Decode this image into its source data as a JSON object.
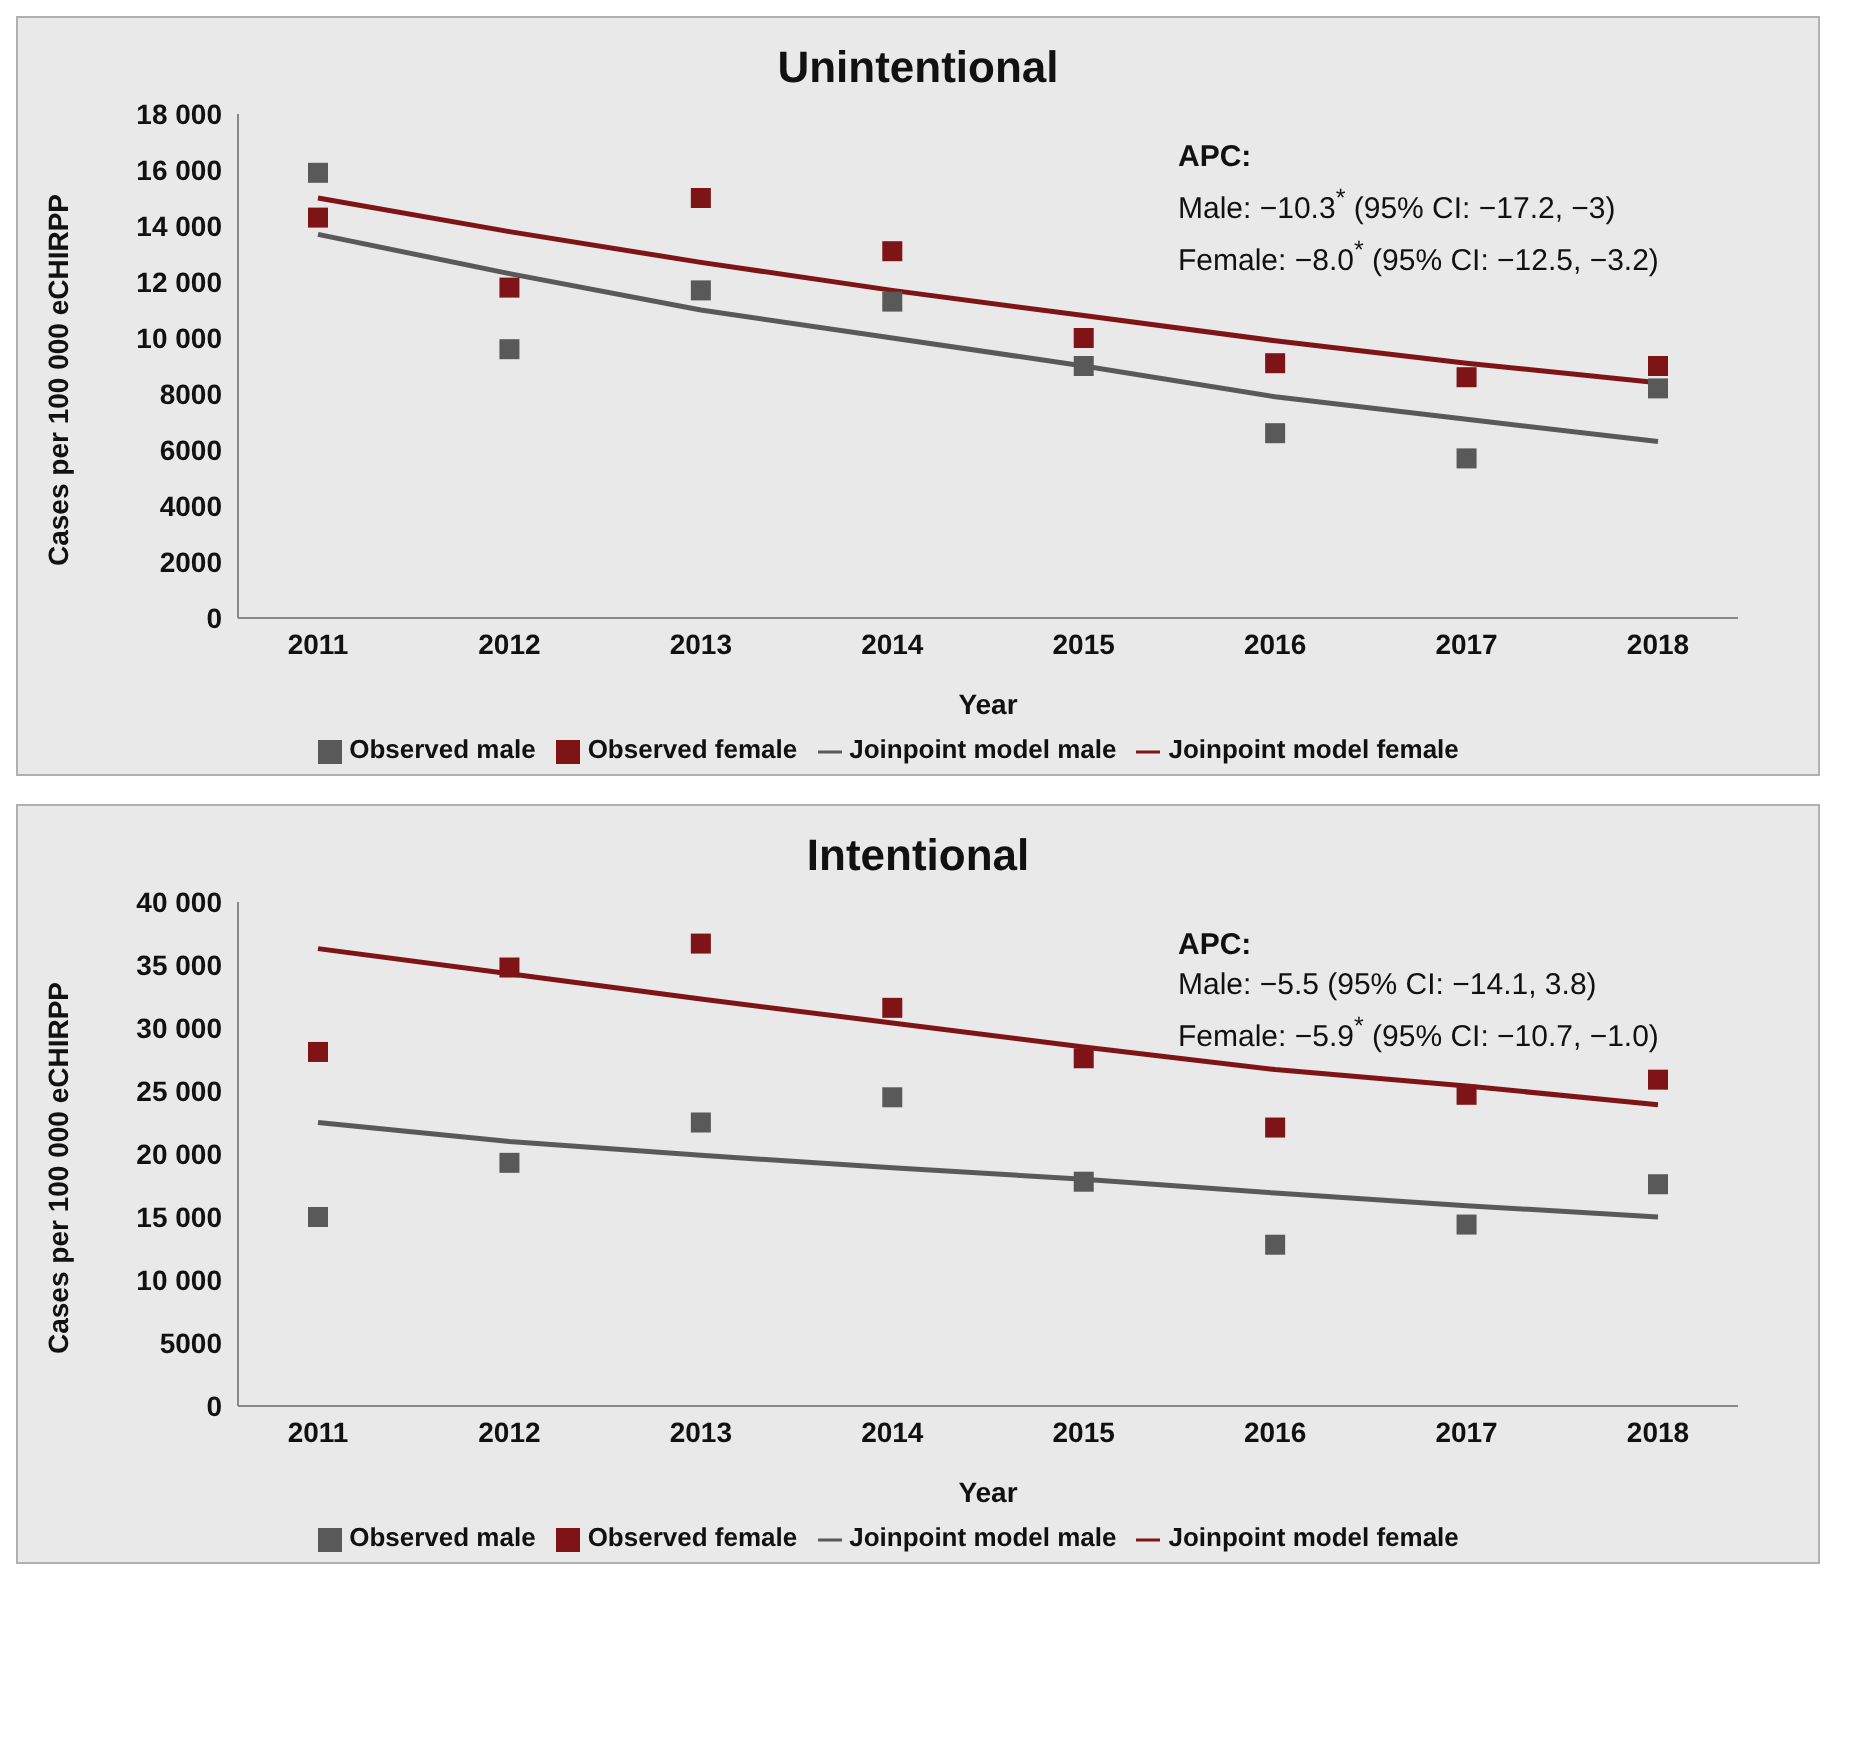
{
  "chart_data": [
    {
      "type": "scatter",
      "title": "Unintentional",
      "xlabel": "Year",
      "ylabel": "Cases per 100 000 eCHIRPP",
      "categories": [
        "2011",
        "2012",
        "2013",
        "2014",
        "2015",
        "2016",
        "2017",
        "2018"
      ],
      "series": [
        {
          "name": "Observed male",
          "marker": "square",
          "color": "#595959",
          "values": [
            15900,
            9600,
            11700,
            11300,
            9000,
            6600,
            5700,
            8200
          ]
        },
        {
          "name": "Observed female",
          "marker": "square",
          "color": "#7f1416",
          "values": [
            14300,
            11800,
            15000,
            13100,
            10000,
            9100,
            8600,
            9000
          ]
        },
        {
          "name": "Joinpoint model male",
          "type": "line",
          "marker": "none",
          "color": "#595959",
          "values": [
            13700,
            12300,
            11000,
            10000,
            9000,
            7900,
            7100,
            6300
          ]
        },
        {
          "name": "Joinpoint model female",
          "type": "line",
          "marker": "none",
          "color": "#7f1416",
          "values": [
            15000,
            13800,
            12700,
            11700,
            10800,
            9900,
            9100,
            8400
          ]
        }
      ],
      "ylim": [
        0,
        18000
      ],
      "yticks": [
        0,
        2000,
        4000,
        6000,
        8000,
        {
          "value": 10000,
          "label": "10 000"
        },
        {
          "value": 12000,
          "label": "12 000"
        },
        {
          "value": 14000,
          "label": "14 000"
        },
        {
          "value": 16000,
          "label": "16 000"
        },
        {
          "value": 18000,
          "label": "18 000"
        }
      ],
      "legend": "bottom",
      "annotations": [
        "APC:",
        "Male: −10.3$^{*}$ (95% CI: −17.2, −3)",
        "Female: −8.0$^{*}$ (95% CI: −12.5, −3.2)"
      ]
    },
    {
      "type": "scatter",
      "title": "Intentional",
      "xlabel": "Year",
      "ylabel": "Cases per 100 000 eCHIRPP",
      "categories": [
        "2011",
        "2012",
        "2013",
        "2014",
        "2015",
        "2016",
        "2017",
        "2018"
      ],
      "series": [
        {
          "name": "Observed male",
          "marker": "square",
          "color": "#595959",
          "values": [
            15000,
            19300,
            22500,
            24500,
            17800,
            12800,
            14400,
            17600
          ]
        },
        {
          "name": "Observed female",
          "marker": "square",
          "color": "#7f1416",
          "values": [
            28100,
            34800,
            36700,
            31600,
            27600,
            22100,
            24700,
            25900
          ]
        },
        {
          "name": "Joinpoint model male",
          "type": "line",
          "marker": "none",
          "color": "#595959",
          "values": [
            22500,
            21000,
            19900,
            18900,
            18000,
            16900,
            15900,
            15000
          ]
        },
        {
          "name": "Joinpoint model female",
          "type": "line",
          "marker": "none",
          "color": "#7f1416",
          "values": [
            36300,
            34300,
            32300,
            30400,
            28500,
            26700,
            25400,
            23900
          ]
        }
      ],
      "ylim": [
        0,
        40000
      ],
      "yticks": [
        0,
        5000,
        {
          "value": 10000,
          "label": "10 000"
        },
        {
          "value": 15000,
          "label": "15 000"
        },
        {
          "value": 20000,
          "label": "20 000"
        },
        {
          "value": 25000,
          "label": "25 000"
        },
        {
          "value": 30000,
          "label": "30 000"
        },
        {
          "value": 35000,
          "label": "35 000"
        },
        {
          "value": 40000,
          "label": "40 000"
        }
      ],
      "legend": "bottom",
      "annotations": [
        "APC:",
        "Male: −5.5 (95% CI: −14.1, 3.8)",
        "Female: −5.9$^{*}$ (95% CI: −10.7, −1.0)"
      ]
    }
  ]
}
